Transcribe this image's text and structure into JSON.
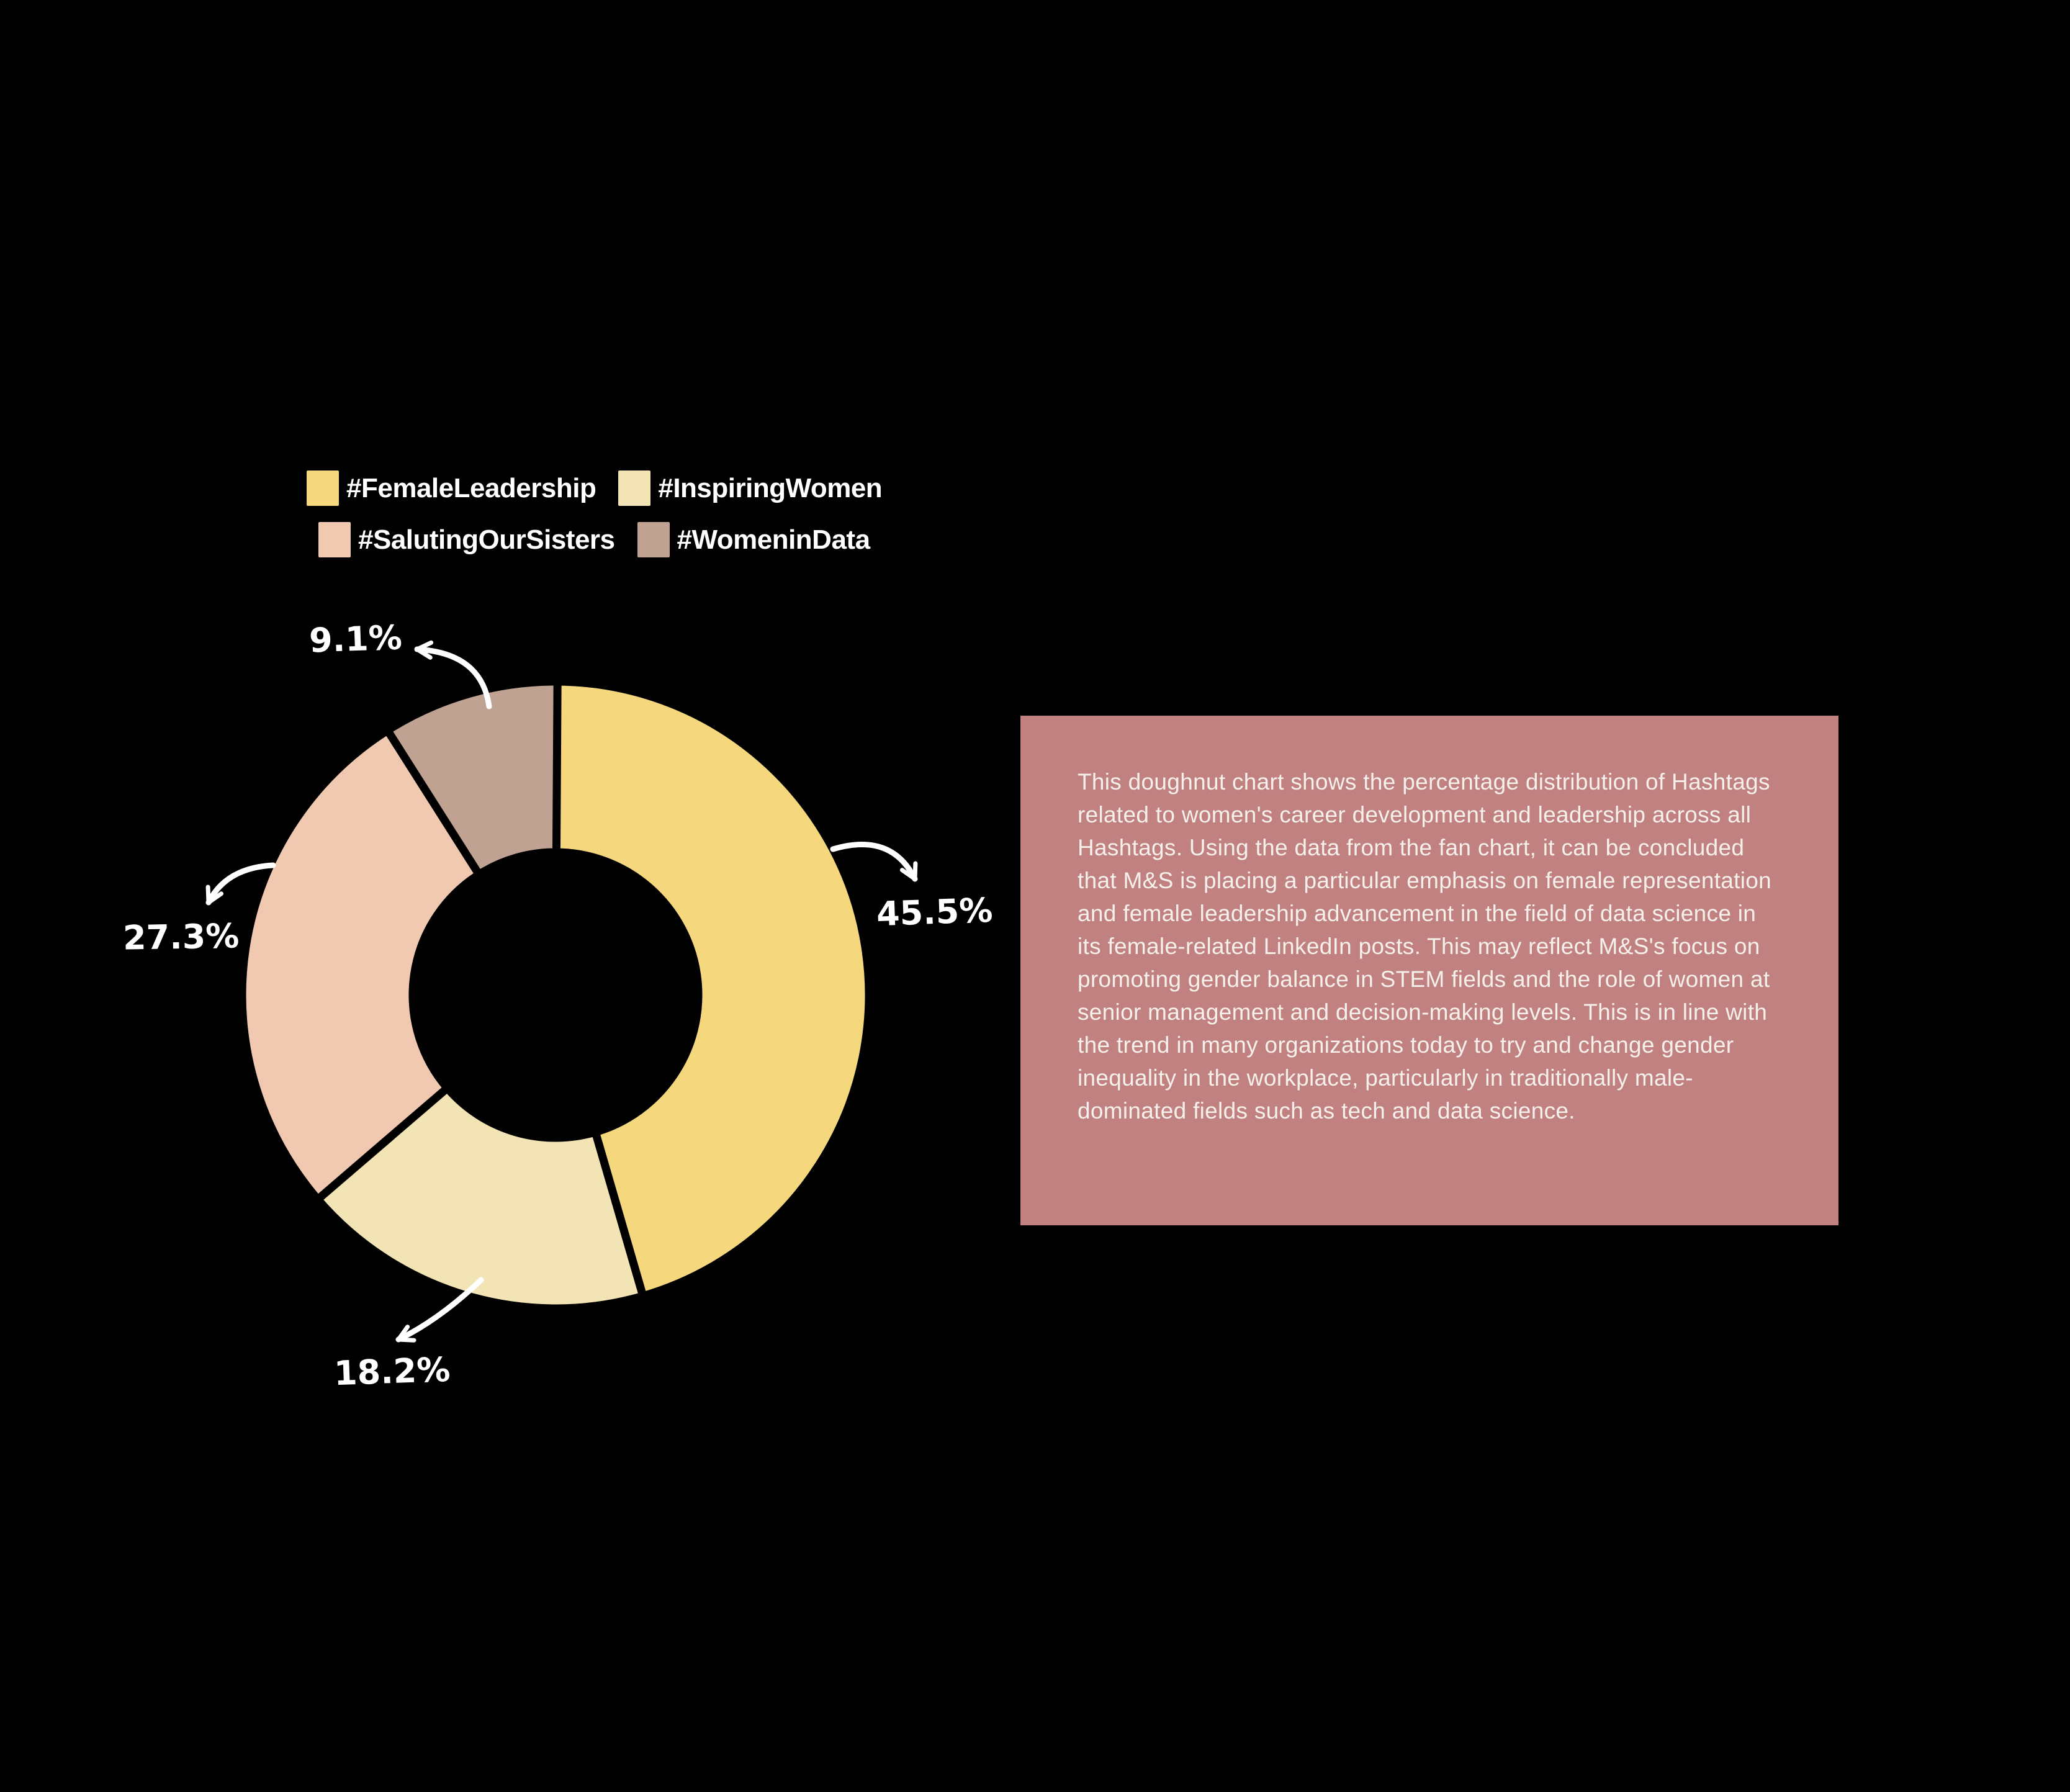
{
  "page": {
    "background": "#000000",
    "annotation_color": "#FFFFFF"
  },
  "legend": {
    "items": [
      {
        "label": "#FemaleLeadership",
        "color": "#F5D77E"
      },
      {
        "label": "#InspiringWomen",
        "color": "#F2E4B4"
      },
      {
        "label": "#SalutingOurSisters",
        "color": "#F1C9B1"
      },
      {
        "label": "#WomeninData",
        "color": "#C0A292"
      }
    ]
  },
  "chart_data": {
    "type": "pie",
    "subtype": "doughnut",
    "labels": [
      "#FemaleLeadership",
      "#InspiringWomen",
      "#SalutingOurSisters",
      "#WomeninData"
    ],
    "values": [
      45.5,
      18.2,
      27.3,
      9.1
    ],
    "unit": "%",
    "colors": [
      "#F5D77E",
      "#F2E4B4",
      "#F1C9B1",
      "#C0A292"
    ],
    "start_angle_deg": 0,
    "direction": "clockwise",
    "inner_radius_ratio": 0.455,
    "slice_gap_color": "#000000",
    "legend_position": "top-left",
    "annotations": [
      {
        "label": "45.5%",
        "series": "#FemaleLeadership"
      },
      {
        "label": "18.2%",
        "series": "#InspiringWomen"
      },
      {
        "label": "27.3%",
        "series": "#SalutingOurSisters"
      },
      {
        "label": "9.1%",
        "series": "#WomeninData"
      }
    ]
  },
  "insight_box": {
    "background": "#C18181",
    "text_color": "#F6F0EB",
    "text": "This doughnut chart shows the percentage distribution of Hashtags related to women's career development and leadership across all Hashtags. Using the data from the fan chart, it can be concluded that M&S is placing a particular emphasis on female representation and female leadership advancement in the field of data science in its female-related LinkedIn posts. This may reflect M&S's focus on promoting gender balance in STEM fields and the role of women at senior management and decision-making levels. This is in line with the trend in many organizations today to try and change gender inequality in the workplace, particularly in traditionally male-dominated fields such as tech and data science."
  }
}
